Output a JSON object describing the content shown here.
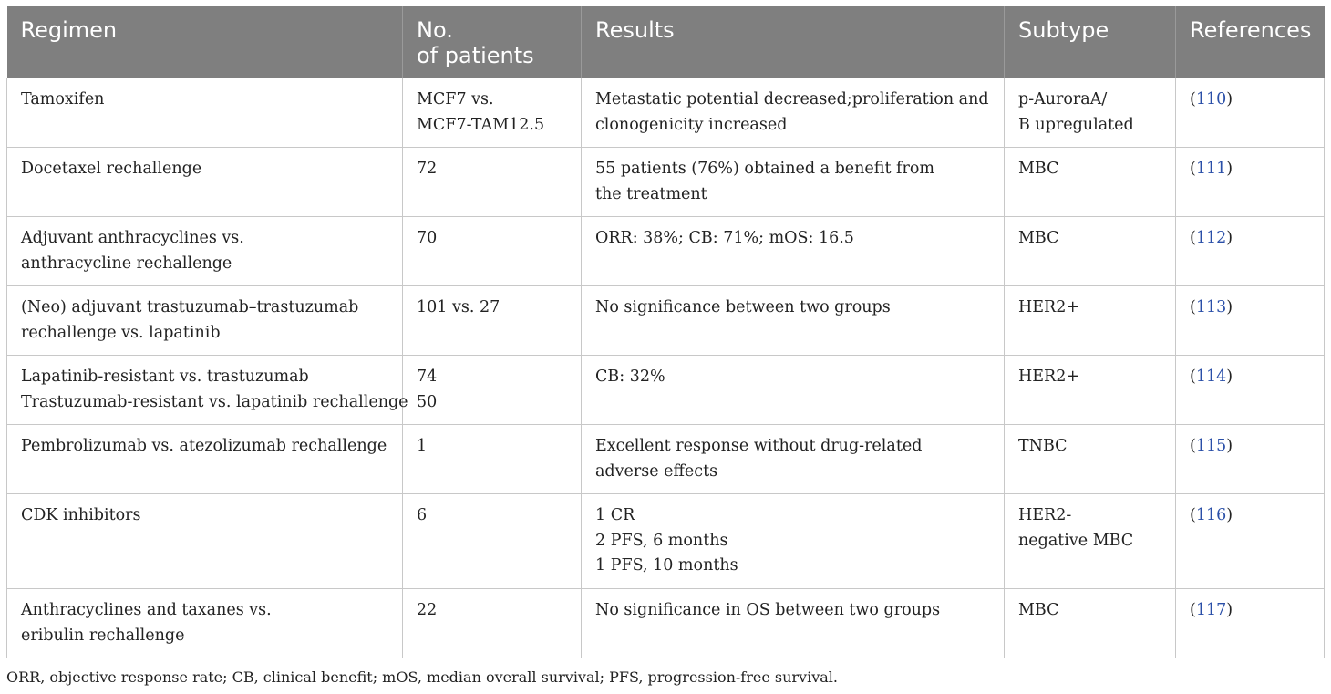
{
  "headers": [
    "Regimen",
    "No.\nof patients",
    "Results",
    "Subtype",
    "References"
  ],
  "header_lines": [
    [
      "Regimen"
    ],
    [
      "No.",
      "of patients"
    ],
    [
      "Results"
    ],
    [
      "Subtype"
    ],
    [
      "References"
    ]
  ],
  "rows": [
    {
      "regimen": [
        "Tamoxifen"
      ],
      "patients": [
        "MCF7 vs.",
        "MCF7-TAM12.5"
      ],
      "results": [
        "Metastatic potential decreased;proliferation and",
        "clonogenicity increased"
      ],
      "subtype": [
        "p-AuroraA/",
        "B upregulated"
      ],
      "ref": "110"
    },
    {
      "regimen": [
        "Docetaxel rechallenge"
      ],
      "patients": [
        "72"
      ],
      "results": [
        "55 patients (76%) obtained a benefit from",
        "the treatment"
      ],
      "subtype": [
        "MBC"
      ],
      "ref": "111"
    },
    {
      "regimen": [
        "Adjuvant anthracyclines vs.",
        "anthracycline rechallenge"
      ],
      "patients": [
        "70"
      ],
      "results": [
        "ORR: 38%; CB: 71%; mOS: 16.5"
      ],
      "subtype": [
        "MBC"
      ],
      "ref": "112"
    },
    {
      "regimen": [
        "(Neo) adjuvant trastuzumab–trastuzumab",
        "rechallenge vs. lapatinib"
      ],
      "patients": [
        "101 vs. 27"
      ],
      "results": [
        "No significance between two groups"
      ],
      "subtype": [
        "HER2+"
      ],
      "ref": "113"
    },
    {
      "regimen": [
        "Lapatinib-resistant vs. trastuzumab",
        "Trastuzumab-resistant vs. lapatinib rechallenge"
      ],
      "patients": [
        "74",
        "50"
      ],
      "results": [
        "CB: 32%"
      ],
      "subtype": [
        "HER2+"
      ],
      "ref": "114"
    },
    {
      "regimen": [
        "Pembrolizumab vs. atezolizumab rechallenge"
      ],
      "patients": [
        "1"
      ],
      "results": [
        "Excellent response without drug-related",
        "adverse effects"
      ],
      "subtype": [
        "TNBC"
      ],
      "ref": "115"
    },
    {
      "regimen": [
        "CDK inhibitors"
      ],
      "patients": [
        "6"
      ],
      "results": [
        "1 CR",
        "2 PFS, 6 months",
        "1 PFS, 10 months"
      ],
      "subtype": [
        "HER2-",
        "negative MBC"
      ],
      "ref": "116"
    },
    {
      "regimen": [
        "Anthracyclines and taxanes vs.",
        "eribulin rechallenge"
      ],
      "patients": [
        "22"
      ],
      "results": [
        "No significance in OS between two groups"
      ],
      "subtype": [
        "MBC"
      ],
      "ref": "117"
    }
  ],
  "footnote": "ORR, objective response rate; CB, clinical benefit; mOS, median overall survival; PFS, progression-free survival.",
  "colors": {
    "header_bg": "#7f7f7f",
    "header_text": "#ffffff",
    "link": "#2a4fa8",
    "border": "#c8c8c8"
  }
}
